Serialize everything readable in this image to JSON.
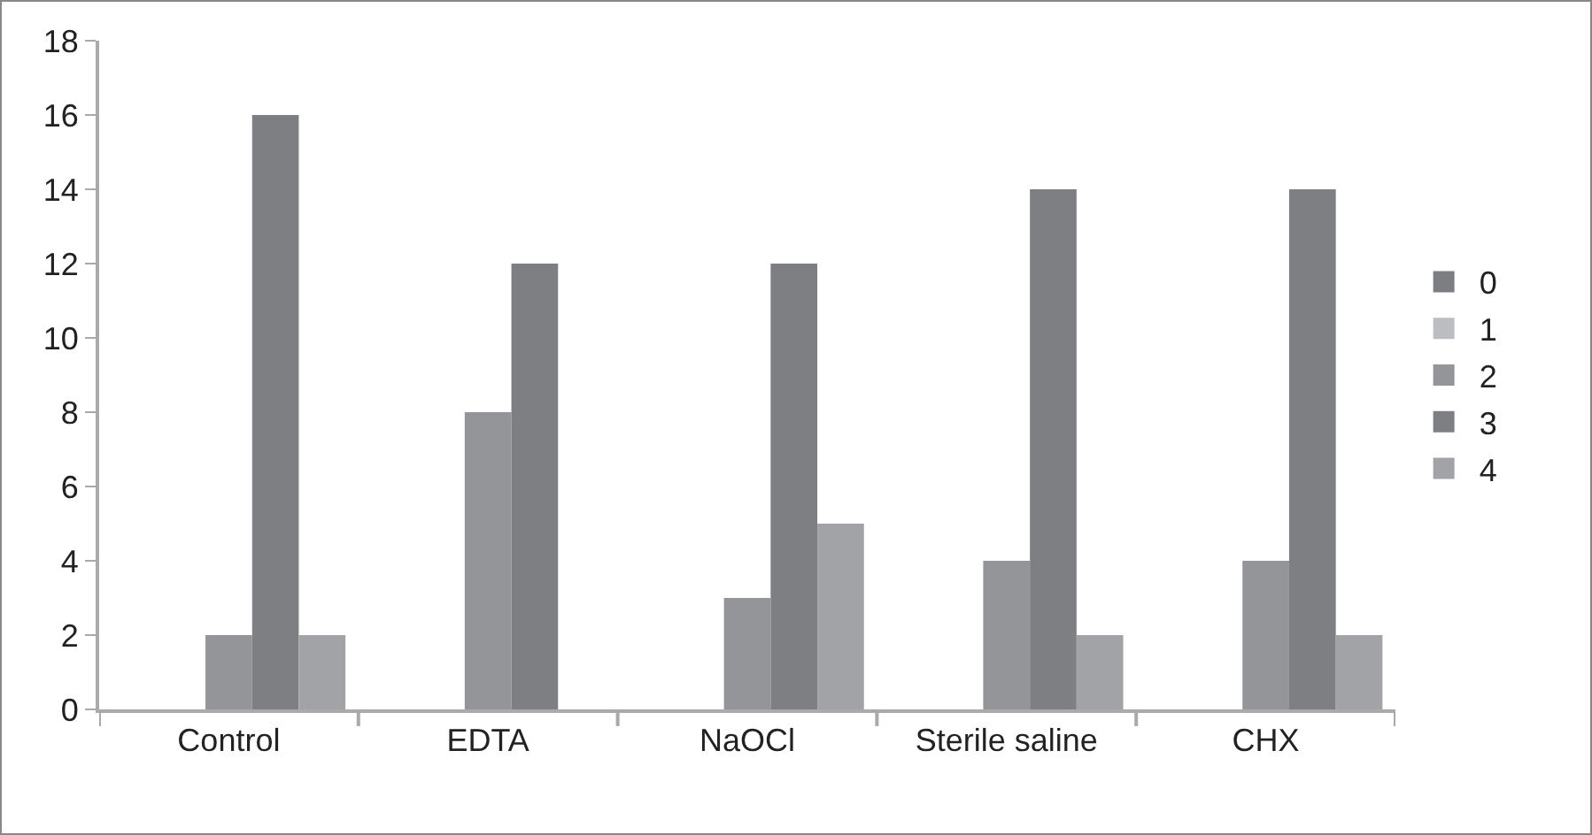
{
  "chart_data": {
    "type": "bar",
    "categories": [
      "Control",
      "EDTA",
      "NaOCl",
      "Sterile saline",
      "CHX"
    ],
    "series": [
      {
        "name": "0",
        "color": "#7d7e82",
        "values": [
          0,
          0,
          0,
          0,
          0
        ]
      },
      {
        "name": "1",
        "color": "#bcbdc0",
        "values": [
          0,
          0,
          0,
          0,
          0
        ]
      },
      {
        "name": "2",
        "color": "#949598",
        "values": [
          2,
          8,
          3,
          4,
          4
        ]
      },
      {
        "name": "3",
        "color": "#7e7f83",
        "values": [
          16,
          12,
          12,
          14,
          14
        ]
      },
      {
        "name": "4",
        "color": "#a2a3a6",
        "values": [
          2,
          0,
          5,
          2,
          2
        ]
      }
    ],
    "ylim": [
      0,
      18
    ],
    "yticks": [
      0,
      2,
      4,
      6,
      8,
      10,
      12,
      14,
      16,
      18
    ],
    "grid": false,
    "legend": "right"
  }
}
